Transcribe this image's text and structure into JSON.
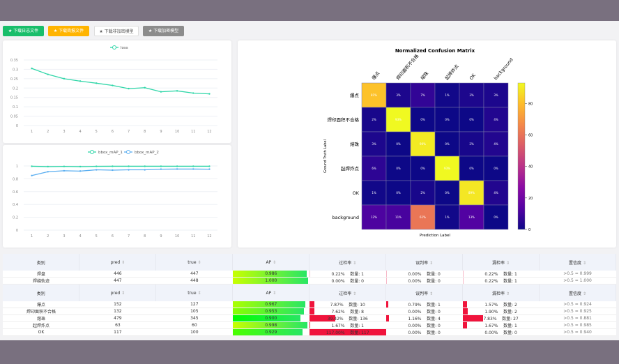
{
  "buttons": [
    {
      "label": "下载日志文件",
      "bg": "#19be6b"
    },
    {
      "label": "下载简报文件",
      "bg": "#ffb400"
    },
    {
      "label": "下载非加密模型",
      "bg": "#ffffff"
    },
    {
      "label": "下载加密模型",
      "bg": "#8c8c8c"
    }
  ],
  "star_icon": "★",
  "chart_data": [
    {
      "type": "line",
      "legend": [
        "loss"
      ],
      "x": [
        1,
        2,
        3,
        4,
        5,
        6,
        7,
        8,
        9,
        10,
        11,
        12
      ],
      "series": [
        {
          "name": "loss",
          "color": "#2fd6a8",
          "values": [
            0.305,
            0.273,
            0.25,
            0.237,
            0.226,
            0.214,
            0.197,
            0.202,
            0.18,
            0.185,
            0.173,
            0.169
          ]
        }
      ],
      "ylim": [
        0,
        0.35
      ],
      "yticks": [
        "0",
        "0.05",
        "0.1",
        "0.15",
        "0.2",
        "0.25",
        "0.3",
        "0.35"
      ],
      "grid": true,
      "legend_position": "top"
    },
    {
      "type": "line",
      "x": [
        1,
        2,
        3,
        4,
        5,
        6,
        7,
        8,
        9,
        10,
        11,
        12
      ],
      "series": [
        {
          "name": "bbox_mAP_1",
          "color": "#2fd6a8",
          "values": [
            0.995,
            0.99,
            0.993,
            0.99,
            0.994,
            0.995,
            0.995,
            0.995,
            0.995,
            0.995,
            0.995,
            0.995
          ]
        },
        {
          "name": "bbox_mAP_2",
          "color": "#5aaef0",
          "values": [
            0.85,
            0.91,
            0.925,
            0.92,
            0.94,
            0.935,
            0.94,
            0.94,
            0.95,
            0.952,
            0.952,
            0.95
          ]
        }
      ],
      "ylim": [
        0,
        1
      ],
      "yticks": [
        "0",
        "0.2",
        "0.4",
        "0.6",
        "0.8",
        "1"
      ],
      "grid": true,
      "legend_position": "top"
    },
    {
      "type": "heatmap",
      "title": "Normalized Confusion Matrix",
      "xlabel": "Prediction Label",
      "ylabel": "Ground Truth Label",
      "labels": [
        "爆点",
        "焊印面积不合格",
        "熔珠",
        "起焊炸点",
        "OK",
        "background"
      ],
      "values": [
        [
          81,
          3,
          7,
          1,
          3,
          3
        ],
        [
          2,
          93,
          0,
          0,
          0,
          4
        ],
        [
          3,
          0,
          90,
          0,
          2,
          4
        ],
        [
          6,
          0,
          0,
          93,
          0,
          0
        ],
        [
          1,
          0,
          2,
          0,
          89,
          4
        ],
        [
          12,
          11,
          61,
          1,
          13,
          0
        ]
      ],
      "colorbar_ticks": [
        0,
        20,
        40,
        60,
        80
      ],
      "vmax": 93,
      "colormap": "plasma"
    }
  ],
  "tables": [
    {
      "headers": [
        "类别",
        "pred",
        "true",
        "AP",
        "过检率",
        "误判率",
        "漏检率",
        "置信度"
      ],
      "rows": [
        [
          "焊盘",
          "446",
          "447",
          "0.986",
          "0.22%",
          "数量: 1",
          "0.00%",
          "数量: 0",
          "0.22%",
          "数量: 1",
          ">0.5 = 0.999"
        ],
        [
          "焊缝轨迹",
          "447",
          "448",
          "1.000",
          "0.00%",
          "数量: 0",
          "0.00%",
          "数量: 0",
          "0.22%",
          "数量: 1",
          ">0.5 = 1.000"
        ]
      ]
    },
    {
      "headers": [
        "类别",
        "pred",
        "true",
        "AP",
        "过检率",
        "误判率",
        "漏检率",
        "置信度"
      ],
      "rows": [
        [
          "爆点",
          "152",
          "127",
          "0.967",
          "7.87%",
          "数量: 10",
          "0.79%",
          "数量: 1",
          "1.57%",
          "数量: 2",
          ">0.5 = 0.924"
        ],
        [
          "焊印面积不合格",
          "132",
          "105",
          "0.953",
          "7.62%",
          "数量: 8",
          "0.00%",
          "数量: 0",
          "1.90%",
          "数量: 2",
          ">0.5 = 0.925"
        ],
        [
          "熔珠",
          "479",
          "345",
          "0.900",
          "39.42%",
          "数量: 136",
          "1.16%",
          "数量: 4",
          "7.83%",
          "数量: 27",
          ">0.5 = 0.881"
        ],
        [
          "起焊炸点",
          "63",
          "60",
          "0.998",
          "1.67%",
          "数量: 1",
          "0.00%",
          "数量: 0",
          "1.67%",
          "数量: 1",
          ">0.5 = 0.985"
        ],
        [
          "OK",
          "117",
          "100",
          "0.929",
          "117.00%",
          "数量: 117",
          "0.00%",
          "数量: 0",
          "0.00%",
          "数量: 0",
          ">0.5 = 0.940"
        ]
      ]
    }
  ],
  "sort_icon": "⇕"
}
